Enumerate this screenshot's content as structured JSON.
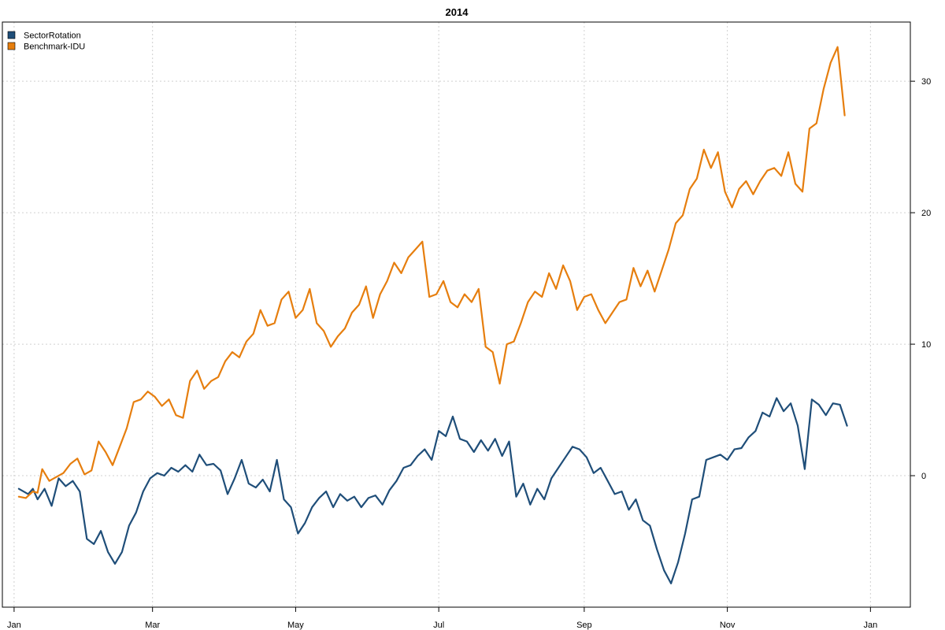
{
  "chart_data": {
    "type": "line",
    "title": "2014",
    "xlabel": "",
    "ylabel": "",
    "x_ticks": [
      "Jan",
      "Mar",
      "May",
      "Jul",
      "Sep",
      "Nov",
      "Jan"
    ],
    "x_tick_dates": [
      "2014-01-01",
      "2014-03-01",
      "2014-05-01",
      "2014-07-01",
      "2014-09-01",
      "2014-11-01",
      "2015-01-01"
    ],
    "y_ticks": [
      0,
      10,
      20,
      30
    ],
    "ylim": [
      -10,
      34.5
    ],
    "xlim": [
      "2013-12-27",
      "2015-01-18"
    ],
    "grid": true,
    "legend_position": "top-left",
    "series": [
      {
        "name": "SectorRotation",
        "color": "#1f4e79",
        "points": [
          [
            "2014-01-03",
            -1.0
          ],
          [
            "2014-01-07",
            -1.4
          ],
          [
            "2014-01-09",
            -1.0
          ],
          [
            "2014-01-11",
            -1.8
          ],
          [
            "2014-01-14",
            -1.0
          ],
          [
            "2014-01-17",
            -2.3
          ],
          [
            "2014-01-20",
            -0.2
          ],
          [
            "2014-01-23",
            -0.8
          ],
          [
            "2014-01-26",
            -0.4
          ],
          [
            "2014-01-29",
            -1.2
          ],
          [
            "2014-02-01",
            -4.8
          ],
          [
            "2014-02-04",
            -5.2
          ],
          [
            "2014-02-07",
            -4.2
          ],
          [
            "2014-02-10",
            -5.8
          ],
          [
            "2014-02-13",
            -6.7
          ],
          [
            "2014-02-16",
            -5.8
          ],
          [
            "2014-02-19",
            -3.8
          ],
          [
            "2014-02-22",
            -2.8
          ],
          [
            "2014-02-25",
            -1.2
          ],
          [
            "2014-02-28",
            -0.2
          ],
          [
            "2014-03-03",
            0.2
          ],
          [
            "2014-03-06",
            0.0
          ],
          [
            "2014-03-09",
            0.6
          ],
          [
            "2014-03-12",
            0.3
          ],
          [
            "2014-03-15",
            0.8
          ],
          [
            "2014-03-18",
            0.3
          ],
          [
            "2014-03-21",
            1.6
          ],
          [
            "2014-03-24",
            0.8
          ],
          [
            "2014-03-27",
            0.9
          ],
          [
            "2014-03-30",
            0.4
          ],
          [
            "2014-04-02",
            -1.4
          ],
          [
            "2014-04-05",
            -0.2
          ],
          [
            "2014-04-08",
            1.2
          ],
          [
            "2014-04-11",
            -0.6
          ],
          [
            "2014-04-14",
            -0.9
          ],
          [
            "2014-04-17",
            -0.3
          ],
          [
            "2014-04-20",
            -1.2
          ],
          [
            "2014-04-23",
            1.2
          ],
          [
            "2014-04-26",
            -1.8
          ],
          [
            "2014-04-29",
            -2.4
          ],
          [
            "2014-05-02",
            -4.4
          ],
          [
            "2014-05-05",
            -3.6
          ],
          [
            "2014-05-08",
            -2.4
          ],
          [
            "2014-05-11",
            -1.7
          ],
          [
            "2014-05-14",
            -1.2
          ],
          [
            "2014-05-17",
            -2.4
          ],
          [
            "2014-05-20",
            -1.4
          ],
          [
            "2014-05-23",
            -1.9
          ],
          [
            "2014-05-26",
            -1.6
          ],
          [
            "2014-05-29",
            -2.4
          ],
          [
            "2014-06-01",
            -1.7
          ],
          [
            "2014-06-04",
            -1.5
          ],
          [
            "2014-06-07",
            -2.2
          ],
          [
            "2014-06-10",
            -1.1
          ],
          [
            "2014-06-13",
            -0.4
          ],
          [
            "2014-06-16",
            0.6
          ],
          [
            "2014-06-19",
            0.8
          ],
          [
            "2014-06-22",
            1.5
          ],
          [
            "2014-06-25",
            2.0
          ],
          [
            "2014-06-28",
            1.2
          ],
          [
            "2014-07-01",
            3.4
          ],
          [
            "2014-07-04",
            3.0
          ],
          [
            "2014-07-07",
            4.5
          ],
          [
            "2014-07-10",
            2.8
          ],
          [
            "2014-07-13",
            2.6
          ],
          [
            "2014-07-16",
            1.8
          ],
          [
            "2014-07-19",
            2.7
          ],
          [
            "2014-07-22",
            1.9
          ],
          [
            "2014-07-25",
            2.8
          ],
          [
            "2014-07-28",
            1.5
          ],
          [
            "2014-07-31",
            2.6
          ],
          [
            "2014-08-03",
            -1.6
          ],
          [
            "2014-08-06",
            -0.6
          ],
          [
            "2014-08-09",
            -2.2
          ],
          [
            "2014-08-12",
            -1.0
          ],
          [
            "2014-08-15",
            -1.8
          ],
          [
            "2014-08-18",
            -0.2
          ],
          [
            "2014-08-21",
            0.6
          ],
          [
            "2014-08-24",
            1.4
          ],
          [
            "2014-08-27",
            2.2
          ],
          [
            "2014-08-30",
            2.0
          ],
          [
            "2014-09-02",
            1.4
          ],
          [
            "2014-09-05",
            0.2
          ],
          [
            "2014-09-08",
            0.6
          ],
          [
            "2014-09-11",
            -0.4
          ],
          [
            "2014-09-14",
            -1.4
          ],
          [
            "2014-09-17",
            -1.2
          ],
          [
            "2014-09-20",
            -2.6
          ],
          [
            "2014-09-23",
            -1.8
          ],
          [
            "2014-09-26",
            -3.4
          ],
          [
            "2014-09-29",
            -3.8
          ],
          [
            "2014-10-02",
            -5.6
          ],
          [
            "2014-10-05",
            -7.2
          ],
          [
            "2014-10-08",
            -8.2
          ],
          [
            "2014-10-11",
            -6.6
          ],
          [
            "2014-10-14",
            -4.4
          ],
          [
            "2014-10-17",
            -1.8
          ],
          [
            "2014-10-20",
            -1.6
          ],
          [
            "2014-10-23",
            1.2
          ],
          [
            "2014-10-26",
            1.4
          ],
          [
            "2014-10-29",
            1.6
          ],
          [
            "2014-11-01",
            1.2
          ],
          [
            "2014-11-04",
            2.0
          ],
          [
            "2014-11-07",
            2.1
          ],
          [
            "2014-11-10",
            2.9
          ],
          [
            "2014-11-13",
            3.4
          ],
          [
            "2014-11-16",
            4.8
          ],
          [
            "2014-11-19",
            4.5
          ],
          [
            "2014-11-22",
            5.9
          ],
          [
            "2014-11-25",
            4.9
          ],
          [
            "2014-11-28",
            5.5
          ],
          [
            "2014-12-01",
            3.8
          ],
          [
            "2014-12-04",
            0.5
          ],
          [
            "2014-12-07",
            5.8
          ],
          [
            "2014-12-10",
            5.4
          ],
          [
            "2014-12-13",
            4.6
          ],
          [
            "2014-12-16",
            5.5
          ],
          [
            "2014-12-19",
            5.4
          ],
          [
            "2014-12-22",
            3.8
          ]
        ]
      },
      {
        "name": "Benchmark-IDU",
        "color": "#e67e0e",
        "points": [
          [
            "2014-01-03",
            -1.6
          ],
          [
            "2014-01-06",
            -1.7
          ],
          [
            "2014-01-09",
            -1.2
          ],
          [
            "2014-01-11",
            -1.3
          ],
          [
            "2014-01-13",
            0.5
          ],
          [
            "2014-01-16",
            -0.4
          ],
          [
            "2014-01-19",
            -0.1
          ],
          [
            "2014-01-22",
            0.2
          ],
          [
            "2014-01-25",
            0.9
          ],
          [
            "2014-01-28",
            1.3
          ],
          [
            "2014-01-31",
            0.1
          ],
          [
            "2014-02-03",
            0.4
          ],
          [
            "2014-02-06",
            2.6
          ],
          [
            "2014-02-09",
            1.8
          ],
          [
            "2014-02-12",
            0.8
          ],
          [
            "2014-02-15",
            2.2
          ],
          [
            "2014-02-18",
            3.6
          ],
          [
            "2014-02-21",
            5.6
          ],
          [
            "2014-02-24",
            5.8
          ],
          [
            "2014-02-27",
            6.4
          ],
          [
            "2014-03-02",
            6.0
          ],
          [
            "2014-03-05",
            5.3
          ],
          [
            "2014-03-08",
            5.8
          ],
          [
            "2014-03-11",
            4.6
          ],
          [
            "2014-03-14",
            4.4
          ],
          [
            "2014-03-17",
            7.2
          ],
          [
            "2014-03-20",
            8.0
          ],
          [
            "2014-03-23",
            6.6
          ],
          [
            "2014-03-26",
            7.2
          ],
          [
            "2014-03-29",
            7.5
          ],
          [
            "2014-04-01",
            8.7
          ],
          [
            "2014-04-04",
            9.4
          ],
          [
            "2014-04-07",
            9.0
          ],
          [
            "2014-04-10",
            10.2
          ],
          [
            "2014-04-13",
            10.8
          ],
          [
            "2014-04-16",
            12.6
          ],
          [
            "2014-04-19",
            11.4
          ],
          [
            "2014-04-22",
            11.6
          ],
          [
            "2014-04-25",
            13.4
          ],
          [
            "2014-04-28",
            14.0
          ],
          [
            "2014-05-01",
            12.0
          ],
          [
            "2014-05-04",
            12.6
          ],
          [
            "2014-05-07",
            14.2
          ],
          [
            "2014-05-10",
            11.6
          ],
          [
            "2014-05-13",
            11.0
          ],
          [
            "2014-05-16",
            9.8
          ],
          [
            "2014-05-19",
            10.6
          ],
          [
            "2014-05-22",
            11.2
          ],
          [
            "2014-05-25",
            12.4
          ],
          [
            "2014-05-28",
            13.0
          ],
          [
            "2014-05-31",
            14.4
          ],
          [
            "2014-06-03",
            12.0
          ],
          [
            "2014-06-06",
            13.8
          ],
          [
            "2014-06-09",
            14.8
          ],
          [
            "2014-06-12",
            16.2
          ],
          [
            "2014-06-15",
            15.4
          ],
          [
            "2014-06-18",
            16.6
          ],
          [
            "2014-06-21",
            17.2
          ],
          [
            "2014-06-24",
            17.8
          ],
          [
            "2014-06-27",
            13.6
          ],
          [
            "2014-06-30",
            13.8
          ],
          [
            "2014-07-03",
            14.8
          ],
          [
            "2014-07-06",
            13.2
          ],
          [
            "2014-07-09",
            12.8
          ],
          [
            "2014-07-12",
            13.8
          ],
          [
            "2014-07-15",
            13.2
          ],
          [
            "2014-07-18",
            14.2
          ],
          [
            "2014-07-21",
            9.8
          ],
          [
            "2014-07-24",
            9.4
          ],
          [
            "2014-07-27",
            7.0
          ],
          [
            "2014-07-30",
            10.0
          ],
          [
            "2014-08-02",
            10.2
          ],
          [
            "2014-08-05",
            11.6
          ],
          [
            "2014-08-08",
            13.2
          ],
          [
            "2014-08-11",
            14.0
          ],
          [
            "2014-08-14",
            13.6
          ],
          [
            "2014-08-17",
            15.4
          ],
          [
            "2014-08-20",
            14.2
          ],
          [
            "2014-08-23",
            16.0
          ],
          [
            "2014-08-26",
            14.8
          ],
          [
            "2014-08-29",
            12.6
          ],
          [
            "2014-09-01",
            13.6
          ],
          [
            "2014-09-04",
            13.8
          ],
          [
            "2014-09-07",
            12.6
          ],
          [
            "2014-09-10",
            11.6
          ],
          [
            "2014-09-13",
            12.4
          ],
          [
            "2014-09-16",
            13.2
          ],
          [
            "2014-09-19",
            13.4
          ],
          [
            "2014-09-22",
            15.8
          ],
          [
            "2014-09-25",
            14.4
          ],
          [
            "2014-09-28",
            15.6
          ],
          [
            "2014-10-01",
            14.0
          ],
          [
            "2014-10-04",
            15.6
          ],
          [
            "2014-10-07",
            17.2
          ],
          [
            "2014-10-10",
            19.2
          ],
          [
            "2014-10-13",
            19.8
          ],
          [
            "2014-10-16",
            21.8
          ],
          [
            "2014-10-19",
            22.6
          ],
          [
            "2014-10-22",
            24.8
          ],
          [
            "2014-10-25",
            23.4
          ],
          [
            "2014-10-28",
            24.6
          ],
          [
            "2014-10-31",
            21.6
          ],
          [
            "2014-11-03",
            20.4
          ],
          [
            "2014-11-06",
            21.8
          ],
          [
            "2014-11-09",
            22.4
          ],
          [
            "2014-11-12",
            21.4
          ],
          [
            "2014-11-15",
            22.4
          ],
          [
            "2014-11-18",
            23.2
          ],
          [
            "2014-11-21",
            23.4
          ],
          [
            "2014-11-24",
            22.8
          ],
          [
            "2014-11-27",
            24.6
          ],
          [
            "2014-11-30",
            22.2
          ],
          [
            "2014-12-03",
            21.6
          ],
          [
            "2014-12-06",
            26.4
          ],
          [
            "2014-12-09",
            26.8
          ],
          [
            "2014-12-12",
            29.4
          ],
          [
            "2014-12-15",
            31.4
          ],
          [
            "2014-12-18",
            32.6
          ],
          [
            "2014-12-21",
            27.4
          ]
        ]
      }
    ]
  }
}
